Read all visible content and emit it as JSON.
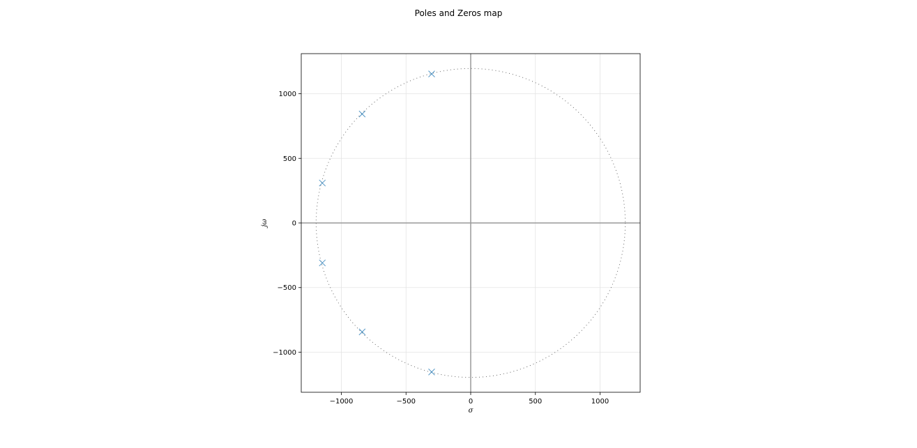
{
  "chart_data": {
    "type": "scatter",
    "title": "Poles and Zeros map",
    "xlabel": "σ",
    "ylabel": "jω",
    "xlim": [
      -1310,
      1310
    ],
    "ylim": [
      -1310,
      1310
    ],
    "xticks": [
      -1000,
      -500,
      0,
      500,
      1000
    ],
    "yticks": [
      -1000,
      -500,
      0,
      500,
      1000
    ],
    "xtick_labels": [
      "−1000",
      "−500",
      "0",
      "500",
      "1000"
    ],
    "ytick_labels": [
      "−1000",
      "−500",
      "0",
      "500",
      "1000"
    ],
    "grid": true,
    "reference_circle_radius": 1195,
    "marker": "x",
    "marker_color": "#1f77b4",
    "series": [
      {
        "points": [
          {
            "x": -302,
            "y": 1153
          },
          {
            "x": -839,
            "y": 843
          },
          {
            "x": -1147,
            "y": 309
          },
          {
            "x": -1147,
            "y": -309
          },
          {
            "x": -839,
            "y": -843
          },
          {
            "x": -302,
            "y": -1153
          }
        ]
      }
    ]
  }
}
